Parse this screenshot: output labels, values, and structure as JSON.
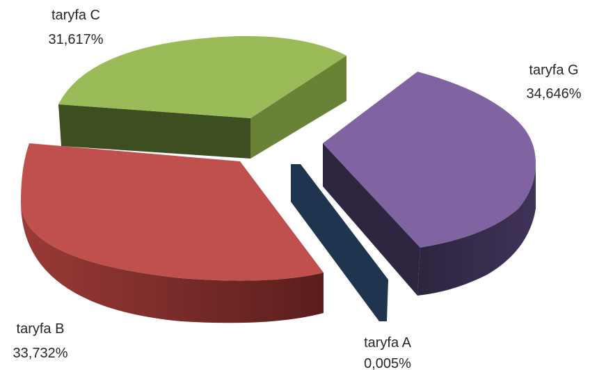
{
  "chart_data": {
    "type": "pie",
    "style": "3d-exploded",
    "legend": "none",
    "categories": [
      "taryfa A",
      "taryfa B",
      "taryfa C",
      "taryfa G"
    ],
    "values": [
      0.005,
      33.732,
      31.617,
      34.646
    ],
    "value_labels": [
      "0,005%",
      "33,732%",
      "31,617%",
      "34,646%"
    ],
    "colors": [
      "#243b5c",
      "#c0504d",
      "#9bbb59",
      "#8064a2"
    ]
  }
}
